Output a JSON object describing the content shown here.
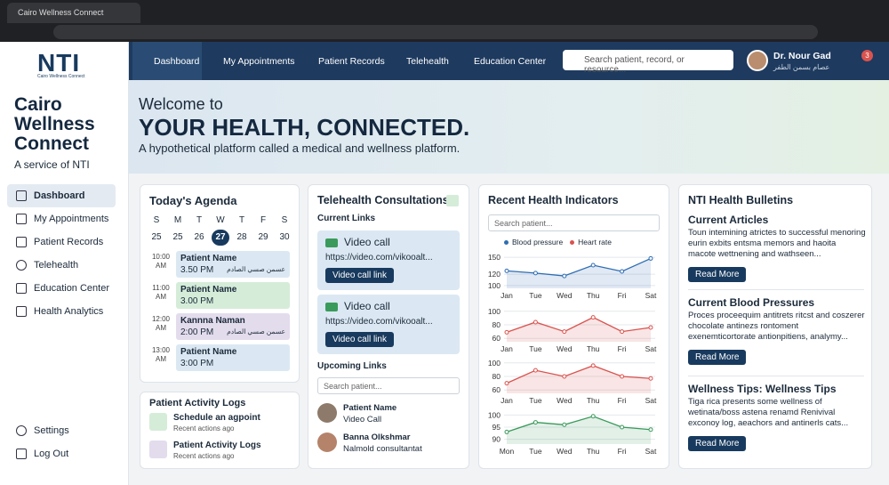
{
  "browser": {
    "tab_title": "Cairo Wellness Connect"
  },
  "sidebar": {
    "logo": "NTI",
    "logo_sub": "Cairo Wellness Connect",
    "brand": "Cairo Wellness Connect",
    "tagline": "A service of NTI",
    "nav": [
      "Dashboard",
      "My Appointments",
      "Patient Records",
      "Telehealth",
      "Education Center",
      "Health Analytics"
    ],
    "bottom": [
      "Settings",
      "Log Out"
    ]
  },
  "topnav": {
    "items": [
      "Dashboard",
      "My Appointments",
      "Patient Records",
      "Telehealth",
      "Education Center"
    ],
    "search_placeholder": "Search patient, record, or resource...",
    "user_name": "Dr. Nour Gad",
    "user_sub": "عصام بسمن الطفر",
    "notifications": 3
  },
  "hero": {
    "greeting": "Welcome to",
    "headline": "YOUR HEALTH, CONNECTED.",
    "subtitle": "A hypothetical platform called a medical and wellness platform."
  },
  "agenda": {
    "title": "Today's Agenda",
    "weekdays": [
      "S",
      "M",
      "T",
      "W",
      "T",
      "F",
      "S"
    ],
    "dates": [
      25,
      25,
      26,
      27,
      28,
      29,
      30
    ],
    "slots": [
      {
        "time": "10:00",
        "period": "AM",
        "name": "Patient Name",
        "at": "3.50 PM",
        "note": "عسمن صسي الصادم"
      },
      {
        "time": "11:00",
        "period": "AM",
        "name": "Patient Name",
        "at": "3.00 PM"
      },
      {
        "time": "12:00",
        "period": "AM",
        "name": "Kannna Naman",
        "at": "2:00 PM",
        "note": "عسمن صسي الصادم"
      },
      {
        "time": "13:00",
        "period": "AM",
        "name": "Patient Name",
        "at": "3:00 PM"
      }
    ]
  },
  "activity": {
    "title": "Patient Activity Logs",
    "items": [
      {
        "title": "Schedule an agpoint",
        "sub": "Recent actions ago"
      },
      {
        "title": "Patient Activity Logs",
        "sub": "Recent actions ago"
      }
    ]
  },
  "telehealth": {
    "title": "Telehealth Consultations",
    "current_label": "Current Links",
    "calls": [
      {
        "title": "Video call",
        "url": "https://video.com/vikooalt...",
        "button": "Video call link"
      },
      {
        "title": "Video call",
        "url": "https://video.com/vikooalt...",
        "button": "Video call link"
      }
    ],
    "upcoming_label": "Upcoming Links",
    "search_placeholder": "Search patient...",
    "people": [
      {
        "name": "Patient Name",
        "role": "Video Call"
      },
      {
        "name": "Banna Olkshmar",
        "role": "Nalmold consultantat"
      }
    ]
  },
  "indicators": {
    "title": "Recent Health Indicators",
    "search_placeholder": "Search patient...",
    "legend": [
      {
        "name": "Blood pressure",
        "color": "#2f6db3"
      },
      {
        "name": "Heart rate",
        "color": "#d9534f"
      }
    ],
    "charts": [
      {
        "type": "line",
        "categories": [
          "Jan",
          "Tue",
          "Wed",
          "Thu",
          "Fri",
          "Sat"
        ],
        "values": [
          126,
          122,
          117,
          136,
          125,
          148
        ],
        "color": "#2f6db3",
        "ylim": [
          95,
          155
        ],
        "yticks": [
          100,
          120,
          150
        ]
      },
      {
        "type": "line",
        "categories": [
          "Jan",
          "Tue",
          "Wed",
          "Thu",
          "Fri",
          "Sat"
        ],
        "values": [
          69,
          84,
          70,
          91,
          70,
          76
        ],
        "color": "#d9534f",
        "ylim": [
          55,
          105
        ],
        "yticks": [
          60,
          80,
          100
        ]
      },
      {
        "type": "line",
        "categories": [
          "Jan",
          "Tue",
          "Wed",
          "Thu",
          "Fri",
          "Sat"
        ],
        "values": [
          70,
          89,
          80,
          96,
          80,
          77
        ],
        "color": "#d9534f",
        "ylim": [
          55,
          105
        ],
        "yticks": [
          60,
          80,
          100
        ]
      },
      {
        "type": "line",
        "categories": [
          "Mon",
          "Tue",
          "Wed",
          "Thu",
          "Fri",
          "Sat"
        ],
        "values": [
          93,
          97,
          96,
          99.5,
          95,
          94
        ],
        "color": "#3a9a5b",
        "ylim": [
          88,
          102
        ],
        "yticks": [
          90,
          95,
          100
        ]
      }
    ]
  },
  "bulletins": {
    "title": "NTI Health Bulletins",
    "articles": [
      {
        "heading": "Current Articles",
        "body": "Toun intemining atrictes to successful menoring eurin exbits entsma memors and haoita macote wettnening and wathseen...",
        "button": "Read More"
      },
      {
        "heading": "Current Blood Pressures",
        "body": "Proces proceequim antitrets ritcst and coszerer chocolate antinezs rontoment exenemticortorate antionpitiens, analymy...",
        "button": "Read More"
      },
      {
        "heading": "Wellness Tips: Wellness Tips",
        "body": "Tiga rica presents some wellness of wetinata/boss astena renamd Renivival exconoy log, aeachors and antinerls cats...",
        "button": "Read More"
      }
    ]
  }
}
